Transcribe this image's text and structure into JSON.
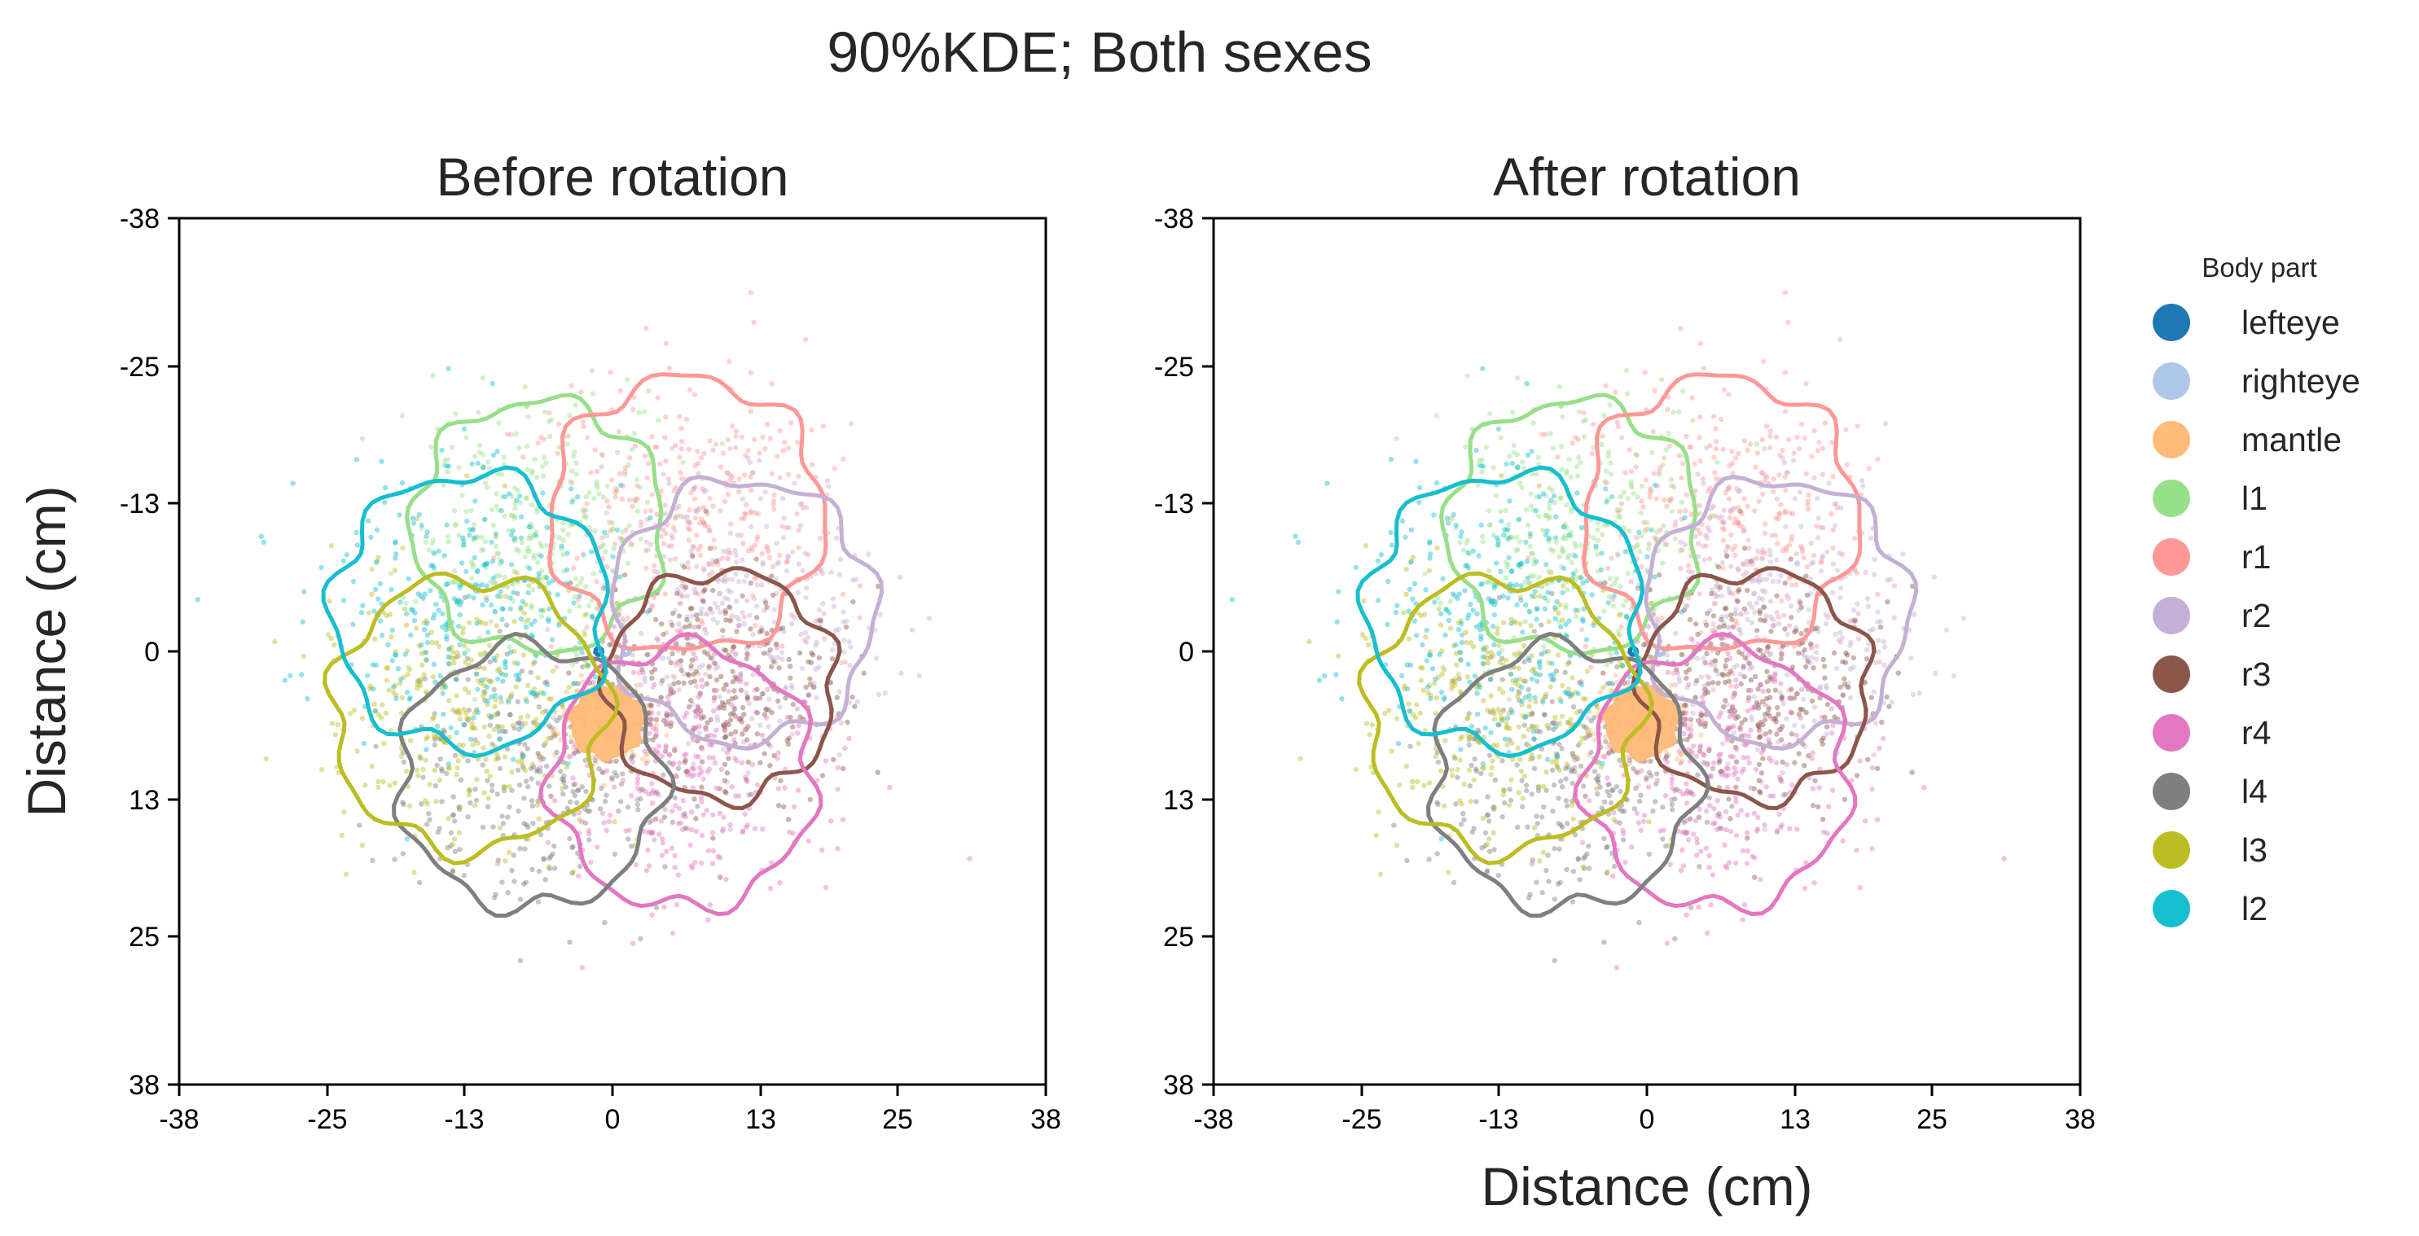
{
  "chart_data": {
    "type": "scatter",
    "title": "90%KDE; Both sexes",
    "panels": [
      {
        "title": "Before rotation",
        "xlabel": "",
        "ylabel": "Distance (cm)"
      },
      {
        "title": "After rotation",
        "xlabel": "Distance (cm)",
        "ylabel": ""
      }
    ],
    "xlim": [
      -38,
      38
    ],
    "ylim": [
      -38,
      38
    ],
    "y_inverted": true,
    "ticks": [
      "-38",
      "-25",
      "-13",
      "0",
      "13",
      "25",
      "38"
    ],
    "tick_values": [
      -38,
      -25,
      -13,
      0,
      13,
      25,
      38
    ],
    "legend": {
      "title": "Body part",
      "position": "right"
    },
    "series": [
      {
        "name": "lefteye",
        "color": "#1f77b4",
        "center": [
          -1.2,
          0
        ],
        "kde_radius": 0.3,
        "spread": 0.3
      },
      {
        "name": "righteye",
        "color": "#aec7e8",
        "center": [
          1.2,
          0
        ],
        "kde_radius": 0.3,
        "spread": 0.3
      },
      {
        "name": "mantle",
        "color": "#ffbb78",
        "center": [
          -0.5,
          6.2
        ],
        "kde_radius": 3.2,
        "spread": 2.0
      },
      {
        "name": "l1",
        "color": "#98df8a",
        "center": [
          -6.5,
          -11
        ],
        "kde_radius": 11,
        "spread": 6.0
      },
      {
        "name": "r1",
        "color": "#ff9896",
        "center": [
          6.5,
          -12
        ],
        "kde_radius": 12,
        "spread": 6.2
      },
      {
        "name": "r2",
        "color": "#c5b0d5",
        "center": [
          11.5,
          -3.5
        ],
        "kde_radius": 11.5,
        "spread": 6.0
      },
      {
        "name": "r3",
        "color": "#8c564b",
        "center": [
          9.5,
          3
        ],
        "kde_radius": 10,
        "spread": 5.5
      },
      {
        "name": "r4",
        "color": "#e377c2",
        "center": [
          6.2,
          11
        ],
        "kde_radius": 11.5,
        "spread": 6.0
      },
      {
        "name": "l4",
        "color": "#7f7f7f",
        "center": [
          -7.2,
          11
        ],
        "kde_radius": 11.5,
        "spread": 6.0
      },
      {
        "name": "l3",
        "color": "#bcbd22",
        "center": [
          -12.5,
          5.5
        ],
        "kde_radius": 12,
        "spread": 6.2
      },
      {
        "name": "l2",
        "color": "#17becf",
        "center": [
          -12.5,
          -3.5
        ],
        "kde_radius": 12,
        "spread": 6.5
      }
    ]
  }
}
